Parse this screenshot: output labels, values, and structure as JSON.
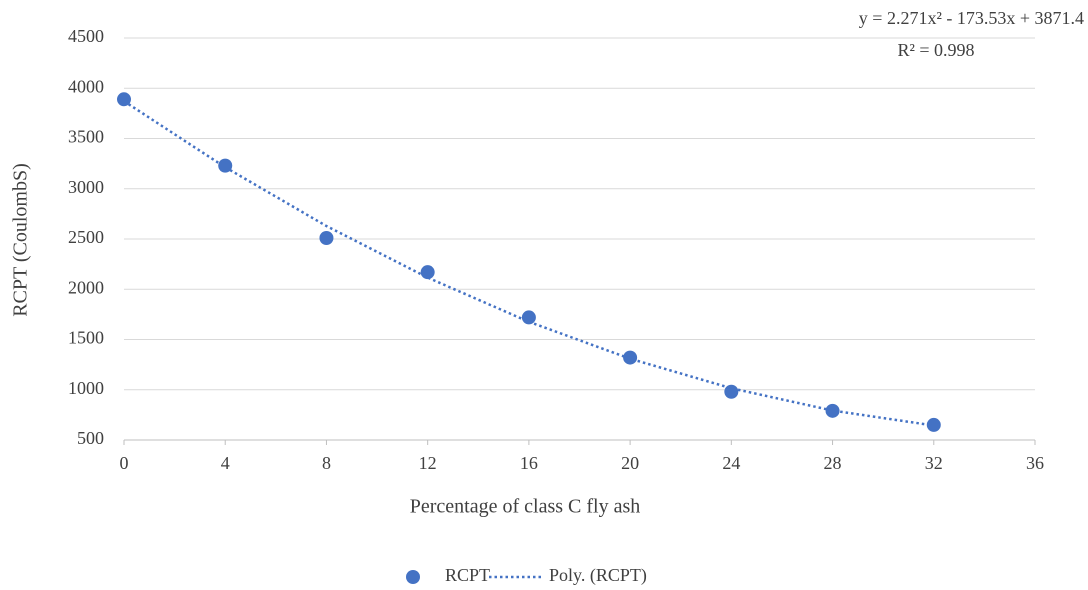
{
  "chart_data": {
    "type": "scatter",
    "xlabel": "Percentage of class C fly ash",
    "ylabel": "RCPT (CoulombS)",
    "annotations": [
      "y = 2.271x² - 173.53x + 3871.4",
      "R² = 0.998"
    ],
    "xlim": [
      0,
      36
    ],
    "xticks": [
      0,
      4,
      8,
      12,
      16,
      20,
      24,
      28,
      32,
      36
    ],
    "ylim": [
      500,
      4500
    ],
    "yticks": [
      500,
      1000,
      1500,
      2000,
      2500,
      3000,
      3500,
      4000,
      4500
    ],
    "grid": true,
    "legend": "bottom",
    "series": [
      {
        "name": "RCPT",
        "color": "#4472c4",
        "marker": "circle",
        "x": [
          0,
          4,
          8,
          12,
          16,
          20,
          24,
          28,
          32
        ],
        "values": [
          3890,
          3230,
          2510,
          2170,
          1720,
          1320,
          980,
          790,
          650
        ]
      },
      {
        "name": "Poly. (RCPT)",
        "color": "#4472c4",
        "line_style": "dotted",
        "x": [
          0,
          4,
          8,
          12,
          16,
          20,
          24,
          28,
          32
        ],
        "values": [
          3871,
          3214,
          2629,
          2116,
          1676,
          1309,
          1015,
          793,
          644
        ]
      }
    ]
  }
}
